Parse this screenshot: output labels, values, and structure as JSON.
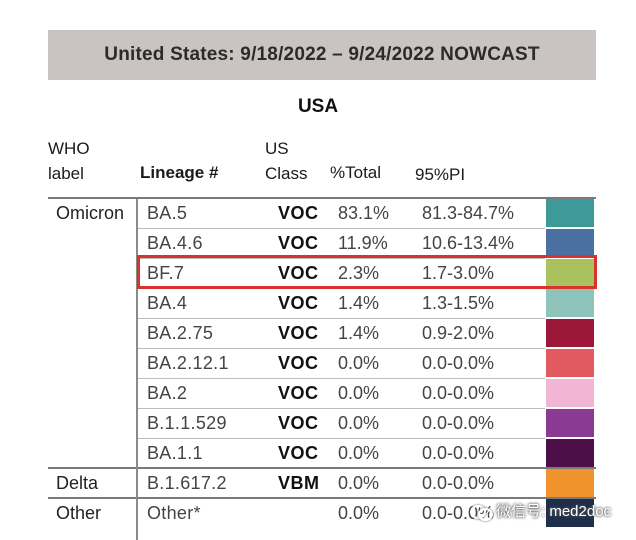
{
  "banner": {
    "title": "United States: 9/18/2022 – 9/24/2022 NOWCAST"
  },
  "region": "USA",
  "headers": {
    "who_line1": "WHO",
    "who_line2": "label",
    "lineage": "Lineage #",
    "class_line1": "US",
    "class_line2": "Class",
    "total": "%Total",
    "pi": "95%PI"
  },
  "rows": [
    {
      "who": "Omicron",
      "lineage": "BA.5",
      "class": "VOC",
      "total": "83.1%",
      "pi": "81.3-84.7%",
      "color": "#3d9a99"
    },
    {
      "who": "",
      "lineage": "BA.4.6",
      "class": "VOC",
      "total": "11.9%",
      "pi": "10.6-13.4%",
      "color": "#4a6fa0"
    },
    {
      "who": "",
      "lineage": "BF.7",
      "class": "VOC",
      "total": "2.3%",
      "pi": "1.7-3.0%",
      "color": "#a9c25e"
    },
    {
      "who": "",
      "lineage": "BA.4",
      "class": "VOC",
      "total": "1.4%",
      "pi": "1.3-1.5%",
      "color": "#8fc4bd"
    },
    {
      "who": "",
      "lineage": "BA.2.75",
      "class": "VOC",
      "total": "1.4%",
      "pi": "0.9-2.0%",
      "color": "#9d1838"
    },
    {
      "who": "",
      "lineage": "BA.2.12.1",
      "class": "VOC",
      "total": "0.0%",
      "pi": "0.0-0.0%",
      "color": "#e05a5f"
    },
    {
      "who": "",
      "lineage": "BA.2",
      "class": "VOC",
      "total": "0.0%",
      "pi": "0.0-0.0%",
      "color": "#f0b6d4"
    },
    {
      "who": "",
      "lineage": "B.1.1.529",
      "class": "VOC",
      "total": "0.0%",
      "pi": "0.0-0.0%",
      "color": "#8b3a93"
    },
    {
      "who": "",
      "lineage": "BA.1.1",
      "class": "VOC",
      "total": "0.0%",
      "pi": "0.0-0.0%",
      "color": "#4d0f47"
    },
    {
      "who": "Delta",
      "lineage": "B.1.617.2",
      "class": "VBM",
      "total": "0.0%",
      "pi": "0.0-0.0%",
      "color": "#f0922e"
    },
    {
      "who": "Other",
      "lineage": "Other*",
      "class": "",
      "total": "0.0%",
      "pi": "0.0-0.0%",
      "color": "#1f2f4a"
    }
  ],
  "watermark": {
    "text": "微信号: med2doc"
  }
}
